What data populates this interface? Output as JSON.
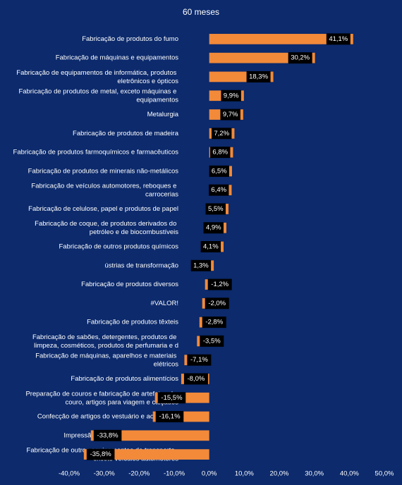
{
  "chart_data": {
    "type": "bar",
    "orientation": "horizontal",
    "title": "60 meses",
    "categories": [
      "Fabricação de produtos do fumo",
      "Fabricação de máquinas e equipamentos",
      "Fabricação de equipamentos de informática, produtos eletrônicos e ópticos",
      "Fabricação de produtos de metal, exceto máquinas e equipamentos",
      "Metalurgia",
      "Fabricação de produtos de madeira",
      "Fabricação de produtos farmoquímicos e farmacêuticos",
      "Fabricação de produtos de minerais não-metálicos",
      "Fabricação de veículos automotores, reboques e carrocerias",
      "Fabricação de celulose, papel e produtos de papel",
      "Fabricação de coque, de produtos derivados do petróleo e de biocombustíveis",
      "Fabricação de outros produtos químicos",
      "ústrias de transformação",
      "Fabricação de produtos diversos",
      "#VALOR!",
      "Fabricação de produtos têxteis",
      "Fabricação de sabões, detergentes, produtos de limpeza, cosméticos, produtos de perfumaria e d",
      "Fabricação de máquinas, aparelhos e materiais elétricos",
      "Fabricação de produtos alimentícios",
      "Preparação de couros e fabricação de artefatos de couro, artigos para viagem e calçados",
      "Confecção de artigos do vestuário e acessórios",
      "Impressão e reprodução de gravações",
      "Fabricação de outros equipamentos de transporte, exceto veículos automotores"
    ],
    "values": [
      41.1,
      30.2,
      18.3,
      9.9,
      9.7,
      7.2,
      6.8,
      6.5,
      6.4,
      5.5,
      4.9,
      4.1,
      1.3,
      -1.2,
      -2.0,
      -2.8,
      -3.5,
      -7.1,
      -8.0,
      -15.5,
      -16.1,
      -33.8,
      -35.8
    ],
    "value_labels": [
      "41,1%",
      "30,2%",
      "18,3%",
      "9,9%",
      "9,7%",
      "7,2%",
      "6,8%",
      "6,5%",
      "6,4%",
      "5,5%",
      "4,9%",
      "4,1%",
      "1,3%",
      "-1,2%",
      "-2,0%",
      "-2,8%",
      "-3,5%",
      "-7,1%",
      "-8,0%",
      "-15,5%",
      "-16,1%",
      "-33,8%",
      "-35,8%"
    ],
    "color": "#f28a3a",
    "xlim": [
      -40,
      50
    ],
    "xticks": [
      {
        "value": -40,
        "label": "-40,0%"
      },
      {
        "value": -30,
        "label": "-30,0%"
      },
      {
        "value": -20,
        "label": "-20,0%"
      },
      {
        "value": -10,
        "label": "-10,0%"
      },
      {
        "value": 0,
        "label": "0,0%"
      },
      {
        "value": 10,
        "label": "10,0%"
      },
      {
        "value": 20,
        "label": "20,0%"
      },
      {
        "value": 30,
        "label": "30,0%"
      },
      {
        "value": 40,
        "label": "40,0%"
      },
      {
        "value": 50,
        "label": "50,0%"
      }
    ],
    "grid": false
  }
}
